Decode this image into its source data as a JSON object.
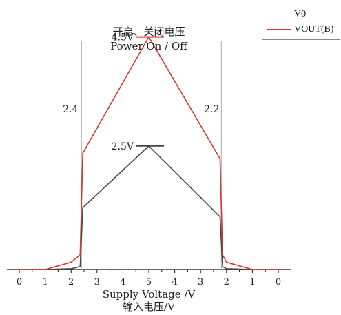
{
  "chart_data": {
    "type": "line",
    "title": "开启、关闭电压",
    "subtitle": "Power On / Off",
    "xlabel": "Supply Voltage /V",
    "xlabel2": "输入电压/V",
    "ylabel": "",
    "grid": false,
    "legend_position": "top-right",
    "x_tick_labels": [
      "0",
      "1",
      "2",
      "3",
      "4",
      "5",
      "4",
      "3",
      "2",
      "1",
      "0"
    ],
    "x": [
      0,
      1,
      2,
      2.35,
      2.45,
      5,
      7.75,
      7.85,
      8,
      9,
      10
    ],
    "series": [
      {
        "name": "V0",
        "color": "#444444",
        "values": [
          0,
          0,
          0.02,
          0.08,
          1.7,
          3.4,
          1.45,
          0.08,
          0.02,
          0,
          0
        ]
      },
      {
        "name": "VOUT(B)",
        "color": "#d83232",
        "values": [
          0,
          0,
          0.2,
          0.4,
          3.2,
          6.4,
          3.05,
          0.4,
          0.2,
          0,
          0
        ]
      }
    ],
    "ylim": [
      0,
      7
    ],
    "vertical_markers": [
      {
        "x": 2.4,
        "label": "2.4"
      },
      {
        "x": 7.8,
        "label": "2.2"
      }
    ],
    "peak_labels": [
      {
        "label": "4.5V",
        "series": "VOUT(B)"
      },
      {
        "label": "2.5V",
        "series": "V0"
      }
    ]
  }
}
